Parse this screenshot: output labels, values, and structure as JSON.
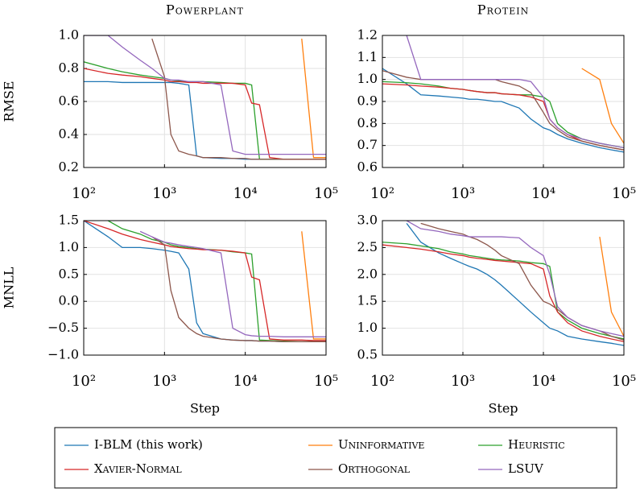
{
  "chart_data": [
    {
      "type": "line",
      "title": "Powerplant",
      "ylabel": "RMSE",
      "log_x": true,
      "grid": true,
      "legend": "bottom",
      "xlim": [
        100,
        100000
      ],
      "xticks": [
        {
          "value": 100,
          "label": "10²"
        },
        {
          "value": 1000,
          "label": "10³"
        },
        {
          "value": 10000,
          "label": "10⁴"
        },
        {
          "value": 100000,
          "label": "10⁵"
        }
      ],
      "ylim": [
        0.2,
        1.0
      ],
      "yticks": [
        0.2,
        0.4,
        0.6,
        0.8,
        {
          "value": 1,
          "label": "1.0"
        }
      ],
      "x": [
        100,
        200,
        300,
        500,
        700,
        1000,
        1200,
        1500,
        2000,
        2500,
        3000,
        5000,
        7000,
        10000,
        12000,
        15000,
        20000,
        30000,
        50000,
        70000,
        100000
      ],
      "series": [
        {
          "name": "I-BLM (this work)",
          "color": "#1f77b4",
          "values": [
            0.72,
            0.72,
            0.715,
            0.715,
            0.715,
            0.715,
            0.715,
            0.71,
            0.7,
            0.27,
            0.26,
            0.255,
            0.255,
            0.25,
            0.25,
            0.25,
            0.25,
            0.25,
            0.25,
            0.25,
            0.25
          ]
        },
        {
          "name": "Uninformative",
          "color": "#ff7f0e",
          "values": [
            null,
            null,
            null,
            null,
            null,
            null,
            null,
            null,
            null,
            null,
            null,
            null,
            null,
            null,
            null,
            null,
            null,
            null,
            0.98,
            0.26,
            0.26
          ]
        },
        {
          "name": "Heuristic",
          "color": "#2ca02c",
          "values": [
            0.84,
            0.8,
            0.78,
            0.76,
            0.75,
            0.74,
            0.73,
            0.725,
            0.72,
            0.72,
            0.72,
            0.715,
            0.71,
            0.71,
            0.7,
            0.25,
            0.25,
            0.25,
            0.25,
            0.25,
            0.25
          ]
        },
        {
          "name": "Xavier-Normal",
          "color": "#d62728",
          "values": [
            0.8,
            0.77,
            0.76,
            0.75,
            0.74,
            0.73,
            0.72,
            0.72,
            0.715,
            0.715,
            0.71,
            0.71,
            0.71,
            0.7,
            0.59,
            0.58,
            0.26,
            0.25,
            0.25,
            0.25,
            0.25
          ]
        },
        {
          "name": "Orthogonal",
          "color": "#8c564b",
          "values": [
            null,
            null,
            null,
            null,
            0.98,
            0.75,
            0.4,
            0.3,
            0.28,
            0.27,
            0.26,
            0.26,
            0.255,
            0.255,
            0.25,
            0.25,
            0.25,
            0.25,
            0.25,
            0.25,
            0.25
          ]
        },
        {
          "name": "LSUV",
          "color": "#9467bd",
          "values": [
            1.0,
            1.0,
            0.93,
            0.85,
            0.8,
            0.74,
            0.73,
            0.73,
            0.72,
            0.72,
            0.72,
            0.7,
            0.3,
            0.28,
            0.28,
            0.28,
            0.28,
            0.28,
            0.28,
            0.28,
            0.28
          ]
        }
      ]
    },
    {
      "type": "line",
      "title": "Protein",
      "log_x": true,
      "grid": true,
      "xlim": [
        100,
        100000
      ],
      "xticks": [
        {
          "value": 100,
          "label": "10²"
        },
        {
          "value": 1000,
          "label": "10³"
        },
        {
          "value": 10000,
          "label": "10⁴"
        },
        {
          "value": 100000,
          "label": "10⁵"
        }
      ],
      "ylim": [
        0.6,
        1.2
      ],
      "yticks": [
        0.6,
        0.7,
        0.8,
        0.9,
        {
          "value": 1,
          "label": "1.0"
        },
        1.1,
        1.2
      ],
      "x": [
        100,
        200,
        300,
        500,
        700,
        1000,
        1200,
        1500,
        2000,
        2500,
        3000,
        5000,
        7000,
        10000,
        12000,
        15000,
        20000,
        30000,
        50000,
        70000,
        100000
      ],
      "series": [
        {
          "name": "I-BLM (this work)",
          "color": "#1f77b4",
          "values": [
            1.05,
            0.98,
            0.93,
            0.925,
            0.92,
            0.915,
            0.91,
            0.91,
            0.905,
            0.9,
            0.9,
            0.87,
            0.82,
            0.78,
            0.77,
            0.75,
            0.73,
            0.71,
            0.69,
            0.68,
            0.67
          ]
        },
        {
          "name": "Uninformative",
          "color": "#ff7f0e",
          "values": [
            null,
            null,
            null,
            null,
            null,
            null,
            null,
            null,
            null,
            null,
            null,
            null,
            null,
            null,
            null,
            null,
            null,
            1.05,
            1.0,
            0.8,
            0.71
          ]
        },
        {
          "name": "Heuristic",
          "color": "#2ca02c",
          "values": [
            0.99,
            0.985,
            0.98,
            0.97,
            0.96,
            0.955,
            0.95,
            0.945,
            0.94,
            0.94,
            0.935,
            0.93,
            0.93,
            0.92,
            0.9,
            0.8,
            0.76,
            0.73,
            0.71,
            0.7,
            0.69
          ]
        },
        {
          "name": "Xavier-Normal",
          "color": "#d62728",
          "values": [
            0.98,
            0.975,
            0.97,
            0.965,
            0.96,
            0.955,
            0.95,
            0.945,
            0.94,
            0.94,
            0.935,
            0.93,
            0.92,
            0.9,
            0.82,
            0.78,
            0.75,
            0.72,
            0.7,
            0.69,
            0.68
          ]
        },
        {
          "name": "Orthogonal",
          "color": "#8c564b",
          "values": [
            1.04,
            1.01,
            1.0,
            1.0,
            1.0,
            1.0,
            1.0,
            1.0,
            1.0,
            1.0,
            0.99,
            0.97,
            0.94,
            0.85,
            0.8,
            0.77,
            0.74,
            0.72,
            0.7,
            0.69,
            0.68
          ]
        },
        {
          "name": "LSUV",
          "color": "#9467bd",
          "values": [
            null,
            1.2,
            1.0,
            1.0,
            1.0,
            1.0,
            1.0,
            1.0,
            1.0,
            1.0,
            1.0,
            1.0,
            0.99,
            0.92,
            0.82,
            0.78,
            0.75,
            0.73,
            0.71,
            0.7,
            0.69
          ]
        }
      ]
    },
    {
      "type": "line",
      "ylabel": "MNLL",
      "xlabel": "Step",
      "log_x": true,
      "grid": true,
      "xlim": [
        100,
        100000
      ],
      "xticks": [
        {
          "value": 100,
          "label": "10²"
        },
        {
          "value": 1000,
          "label": "10³"
        },
        {
          "value": 10000,
          "label": "10⁴"
        },
        {
          "value": 100000,
          "label": "10⁵"
        }
      ],
      "ylim": [
        -1,
        1.5
      ],
      "yticks": [
        {
          "value": -1,
          "label": "−1.0"
        },
        {
          "value": -0.5,
          "label": "−0.5"
        },
        {
          "value": 0,
          "label": "0.0"
        },
        0.5,
        {
          "value": 1,
          "label": "1.0"
        },
        1.5
      ],
      "x": [
        100,
        200,
        300,
        500,
        700,
        1000,
        1200,
        1500,
        2000,
        2500,
        3000,
        5000,
        7000,
        10000,
        12000,
        15000,
        20000,
        30000,
        50000,
        70000,
        100000
      ],
      "series": [
        {
          "name": "I-BLM (this work)",
          "color": "#1f77b4",
          "values": [
            1.5,
            1.2,
            1.0,
            1.0,
            0.98,
            0.95,
            0.93,
            0.9,
            0.6,
            -0.4,
            -0.6,
            -0.7,
            -0.72,
            -0.73,
            -0.73,
            -0.74,
            -0.74,
            -0.75,
            -0.75,
            -0.75,
            -0.75
          ]
        },
        {
          "name": "Uninformative",
          "color": "#ff7f0e",
          "values": [
            null,
            null,
            null,
            null,
            null,
            null,
            null,
            null,
            null,
            null,
            null,
            null,
            null,
            null,
            null,
            null,
            null,
            null,
            1.3,
            -0.7,
            -0.7
          ]
        },
        {
          "name": "Heuristic",
          "color": "#2ca02c",
          "values": [
            null,
            1.5,
            1.35,
            1.25,
            1.15,
            1.1,
            1.05,
            1.02,
            1.0,
            0.98,
            0.97,
            0.95,
            0.92,
            0.9,
            0.88,
            -0.72,
            -0.73,
            -0.74,
            -0.75,
            -0.75,
            -0.75
          ]
        },
        {
          "name": "Xavier-Normal",
          "color": "#d62728",
          "values": [
            1.5,
            1.35,
            1.25,
            1.15,
            1.1,
            1.05,
            1.02,
            1.0,
            0.98,
            0.97,
            0.96,
            0.95,
            0.93,
            0.9,
            0.45,
            0.4,
            -0.7,
            -0.72,
            -0.72,
            -0.73,
            -0.73
          ]
        },
        {
          "name": "Orthogonal",
          "color": "#8c564b",
          "values": [
            null,
            null,
            null,
            null,
            1.2,
            1.05,
            0.2,
            -0.3,
            -0.5,
            -0.6,
            -0.65,
            -0.7,
            -0.72,
            -0.73,
            -0.73,
            -0.74,
            -0.74,
            -0.75,
            -0.75,
            -0.75,
            -0.75
          ]
        },
        {
          "name": "LSUV",
          "color": "#9467bd",
          "values": [
            null,
            null,
            null,
            1.3,
            1.2,
            1.1,
            1.08,
            1.05,
            1.02,
            1.0,
            0.98,
            0.9,
            -0.5,
            -0.62,
            -0.64,
            -0.65,
            -0.65,
            -0.66,
            -0.66,
            -0.66,
            -0.66
          ]
        }
      ]
    },
    {
      "type": "line",
      "xlabel": "Step",
      "log_x": true,
      "grid": true,
      "xlim": [
        100,
        100000
      ],
      "xticks": [
        {
          "value": 100,
          "label": "10²"
        },
        {
          "value": 1000,
          "label": "10³"
        },
        {
          "value": 10000,
          "label": "10⁴"
        },
        {
          "value": 100000,
          "label": "10⁵"
        }
      ],
      "ylim": [
        0.5,
        3
      ],
      "yticks": [
        0.5,
        {
          "value": 1,
          "label": "1.0"
        },
        1.5,
        {
          "value": 2,
          "label": "2.0"
        },
        2.5,
        {
          "value": 3,
          "label": "3.0"
        }
      ],
      "x": [
        100,
        200,
        300,
        500,
        700,
        1000,
        1200,
        1500,
        2000,
        2500,
        3000,
        5000,
        7000,
        10000,
        12000,
        15000,
        20000,
        30000,
        50000,
        70000,
        100000
      ],
      "series": [
        {
          "name": "I-BLM (this work)",
          "color": "#1f77b4",
          "values": [
            null,
            2.95,
            2.6,
            2.4,
            2.3,
            2.2,
            2.15,
            2.1,
            2.0,
            1.9,
            1.8,
            1.5,
            1.3,
            1.1,
            1.0,
            0.95,
            0.85,
            0.8,
            0.75,
            0.72,
            0.68
          ]
        },
        {
          "name": "Uninformative",
          "color": "#ff7f0e",
          "values": [
            null,
            null,
            null,
            null,
            null,
            null,
            null,
            null,
            null,
            null,
            null,
            null,
            null,
            null,
            null,
            null,
            null,
            null,
            2.7,
            1.3,
            0.85
          ]
        },
        {
          "name": "Heuristic",
          "color": "#2ca02c",
          "values": [
            2.6,
            2.57,
            2.53,
            2.48,
            2.42,
            2.38,
            2.35,
            2.33,
            2.3,
            2.28,
            2.27,
            2.25,
            2.22,
            2.2,
            2.15,
            1.3,
            1.15,
            1.0,
            0.9,
            0.85,
            0.8
          ]
        },
        {
          "name": "Xavier-Normal",
          "color": "#d62728",
          "values": [
            2.55,
            2.5,
            2.47,
            2.42,
            2.38,
            2.35,
            2.32,
            2.3,
            2.28,
            2.26,
            2.25,
            2.22,
            2.2,
            2.1,
            1.6,
            1.3,
            1.1,
            0.95,
            0.85,
            0.8,
            0.75
          ]
        },
        {
          "name": "Orthogonal",
          "color": "#8c564b",
          "values": [
            null,
            null,
            2.95,
            2.85,
            2.8,
            2.75,
            2.7,
            2.65,
            2.55,
            2.45,
            2.35,
            2.2,
            1.8,
            1.5,
            1.45,
            1.35,
            1.2,
            1.05,
            0.95,
            0.85,
            0.78
          ]
        },
        {
          "name": "LSUV",
          "color": "#9467bd",
          "values": [
            null,
            3.0,
            2.85,
            2.8,
            2.75,
            2.72,
            2.7,
            2.7,
            2.7,
            2.7,
            2.7,
            2.68,
            2.5,
            2.35,
            2.0,
            1.4,
            1.2,
            1.05,
            0.95,
            0.9,
            0.85
          ]
        }
      ]
    }
  ]
}
